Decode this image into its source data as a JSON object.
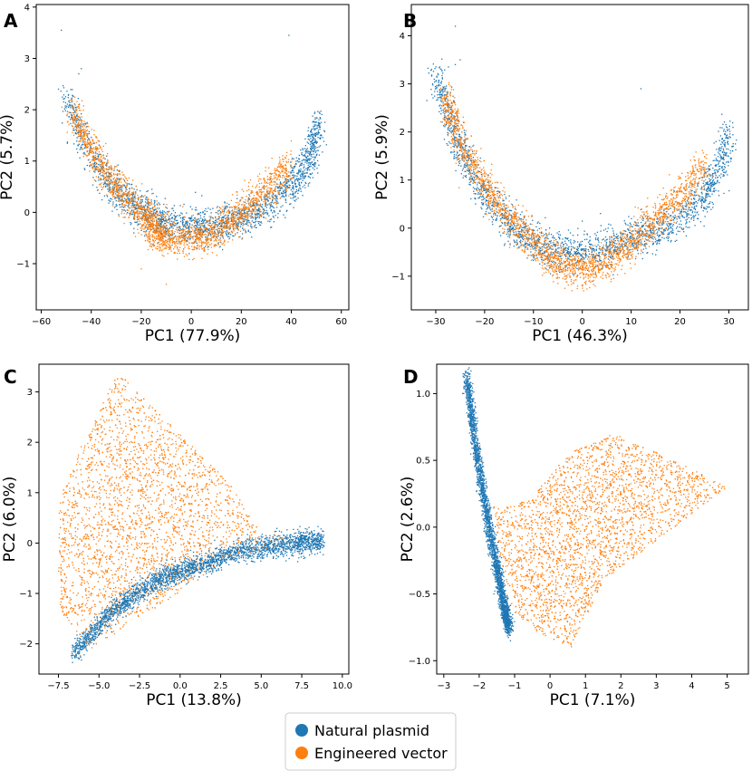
{
  "colors": {
    "natural": "#1f77b4",
    "engineered": "#ff7f0e"
  },
  "legend": {
    "placement": "bottom-center",
    "entries": [
      "Natural plasmid",
      "Engineered vector"
    ]
  },
  "chart_data": [
    {
      "type": "scatter",
      "panel": "A",
      "xlabel": "PC1 (77.9%)",
      "ylabel": "PC2 (5.7%)",
      "xlim": [
        -62,
        63
      ],
      "ylim": [
        -1.9,
        4.05
      ],
      "xticks": [
        -60,
        -40,
        -20,
        0,
        20,
        40,
        60
      ],
      "xtick_labels": [
        "−60",
        "−40",
        "−20",
        "0",
        "20",
        "40",
        "60"
      ],
      "yticks": [
        -1,
        0,
        1,
        2,
        3,
        4
      ],
      "ytick_labels": [
        "−1",
        "0",
        "1",
        "2",
        "3",
        "4"
      ],
      "series": [
        {
          "name": "Natural plasmid",
          "color_key": "natural",
          "curve": [
            [
              -50,
              2.2
            ],
            [
              -40,
              1.1
            ],
            [
              -30,
              0.4
            ],
            [
              -20,
              0.0
            ],
            [
              -10,
              -0.2
            ],
            [
              0,
              -0.3
            ],
            [
              10,
              -0.25
            ],
            [
              20,
              -0.1
            ],
            [
              30,
              0.1
            ],
            [
              40,
              0.5
            ],
            [
              47,
              1.0
            ],
            [
              51,
              1.8
            ]
          ],
          "outliers": [
            [
              -45,
              2.7
            ],
            [
              -44,
              2.8
            ]
          ]
        },
        {
          "name": "Engineered vector",
          "color_key": "engineered",
          "curve": [
            [
              -48,
              2.0
            ],
            [
              -40,
              1.2
            ],
            [
              -30,
              0.5
            ],
            [
              -20,
              0.0
            ],
            [
              -15,
              -0.3
            ],
            [
              -10,
              -0.5
            ],
            [
              0,
              -0.55
            ],
            [
              10,
              -0.4
            ],
            [
              20,
              0.0
            ],
            [
              30,
              0.4
            ],
            [
              40,
              1.0
            ]
          ],
          "outliers": [
            [
              -10,
              -1.4
            ],
            [
              -20,
              -1.1
            ]
          ]
        }
      ],
      "sparse_points": [
        [
          -52,
          3.55
        ],
        [
          39,
          3.45
        ]
      ]
    },
    {
      "type": "scatter",
      "panel": "B",
      "xlabel": "PC1 (46.3%)",
      "ylabel": "PC2 (5.9%)",
      "xlim": [
        -35,
        34
      ],
      "ylim": [
        -1.7,
        4.65
      ],
      "xticks": [
        -30,
        -20,
        -10,
        0,
        10,
        20,
        30
      ],
      "xtick_labels": [
        "−30",
        "−20",
        "−10",
        "0",
        "10",
        "20",
        "30"
      ],
      "yticks": [
        -1,
        0,
        1,
        2,
        3,
        4
      ],
      "ytick_labels": [
        "−1",
        "0",
        "1",
        "2",
        "3",
        "4"
      ],
      "series": [
        {
          "name": "Natural plasmid",
          "color_key": "natural",
          "curve": [
            [
              -30,
              3.2
            ],
            [
              -27,
              2.2
            ],
            [
              -24,
              1.4
            ],
            [
              -20,
              0.7
            ],
            [
              -15,
              0.1
            ],
            [
              -10,
              -0.3
            ],
            [
              -5,
              -0.5
            ],
            [
              0,
              -0.5
            ],
            [
              5,
              -0.4
            ],
            [
              10,
              -0.25
            ],
            [
              15,
              -0.05
            ],
            [
              20,
              0.2
            ],
            [
              25,
              0.7
            ],
            [
              28,
              1.2
            ],
            [
              30,
              2.0
            ]
          ],
          "outliers": [
            [
              -26,
              3.4
            ],
            [
              -25,
              3.5
            ]
          ]
        },
        {
          "name": "Engineered vector",
          "color_key": "engineered",
          "curve": [
            [
              -28,
              2.7
            ],
            [
              -25,
              1.8
            ],
            [
              -20,
              0.9
            ],
            [
              -15,
              0.2
            ],
            [
              -10,
              -0.3
            ],
            [
              -5,
              -0.75
            ],
            [
              0,
              -0.85
            ],
            [
              5,
              -0.7
            ],
            [
              10,
              -0.3
            ],
            [
              15,
              0.2
            ],
            [
              20,
              0.6
            ],
            [
              25,
              1.3
            ]
          ],
          "outliers": [
            [
              -5,
              -1.15
            ],
            [
              0,
              -1.2
            ]
          ]
        }
      ],
      "sparse_points": [
        [
          -26,
          4.2
        ],
        [
          12,
          2.9
        ]
      ]
    },
    {
      "type": "scatter",
      "panel": "C",
      "xlabel": "PC1 (13.8%)",
      "ylabel": "PC2 (6.0%)",
      "xlim": [
        -8.7,
        10.4
      ],
      "ylim": [
        -2.6,
        3.55
      ],
      "xticks": [
        -7.5,
        -5.0,
        -2.5,
        0.0,
        2.5,
        5.0,
        7.5,
        10.0
      ],
      "xtick_labels": [
        "−7.5",
        "−5.0",
        "−2.5",
        "0.0",
        "2.5",
        "5.0",
        "7.5",
        "10.0"
      ],
      "yticks": [
        -2,
        -1,
        0,
        1,
        2,
        3
      ],
      "ytick_labels": [
        "−2",
        "−1",
        "0",
        "1",
        "2",
        "3"
      ],
      "series": [
        {
          "name": "Natural plasmid",
          "color_key": "natural",
          "band": [
            [
              -6.6,
              -2.2
            ],
            [
              -4,
              -1.3
            ],
            [
              -1.5,
              -0.75
            ],
            [
              1,
              -0.45
            ],
            [
              4,
              -0.15
            ],
            [
              7,
              0.0
            ],
            [
              8.8,
              0.05
            ]
          ]
        },
        {
          "name": "Engineered vector",
          "color_key": "engineered",
          "polygon": [
            [
              -7.5,
              -1.3
            ],
            [
              -7.5,
              0.8
            ],
            [
              -6.0,
              2.0
            ],
            [
              -4.0,
              3.3
            ],
            [
              -3.5,
              3.3
            ],
            [
              3.0,
              1.2
            ],
            [
              5.0,
              0.2
            ],
            [
              8.0,
              0.1
            ],
            [
              3.0,
              -0.35
            ],
            [
              -5.5,
              -2.1
            ]
          ]
        }
      ]
    },
    {
      "type": "scatter",
      "panel": "D",
      "xlabel": "PC1 (7.1%)",
      "ylabel": "PC2 (2.6%)",
      "xlim": [
        -3.2,
        5.6
      ],
      "ylim": [
        -1.1,
        1.22
      ],
      "xticks": [
        -3,
        -2,
        -1,
        0,
        1,
        2,
        3,
        4,
        5
      ],
      "xtick_labels": [
        "−3",
        "−2",
        "−1",
        "0",
        "1",
        "2",
        "3",
        "4",
        "5"
      ],
      "yticks": [
        -1.0,
        -0.5,
        0.0,
        0.5,
        1.0
      ],
      "ytick_labels": [
        "−1.0",
        "−0.5",
        "0.0",
        "0.5",
        "1.0"
      ],
      "series": [
        {
          "name": "Natural plasmid",
          "color_key": "natural",
          "band": [
            [
              -2.35,
              1.12
            ],
            [
              -2.1,
              0.6
            ],
            [
              -1.8,
              0.1
            ],
            [
              -1.5,
              -0.3
            ],
            [
              -1.3,
              -0.6
            ],
            [
              -1.15,
              -0.75
            ]
          ]
        },
        {
          "name": "Engineered vector",
          "color_key": "engineered",
          "polygon": [
            [
              -1.2,
              -0.6
            ],
            [
              -1.6,
              0.15
            ],
            [
              -0.6,
              0.2
            ],
            [
              0.5,
              0.55
            ],
            [
              1.8,
              0.7
            ],
            [
              3.5,
              0.5
            ],
            [
              5.0,
              0.3
            ],
            [
              3.0,
              -0.1
            ],
            [
              1.5,
              -0.4
            ],
            [
              0.6,
              -0.9
            ],
            [
              -0.3,
              -0.8
            ]
          ]
        }
      ]
    }
  ]
}
